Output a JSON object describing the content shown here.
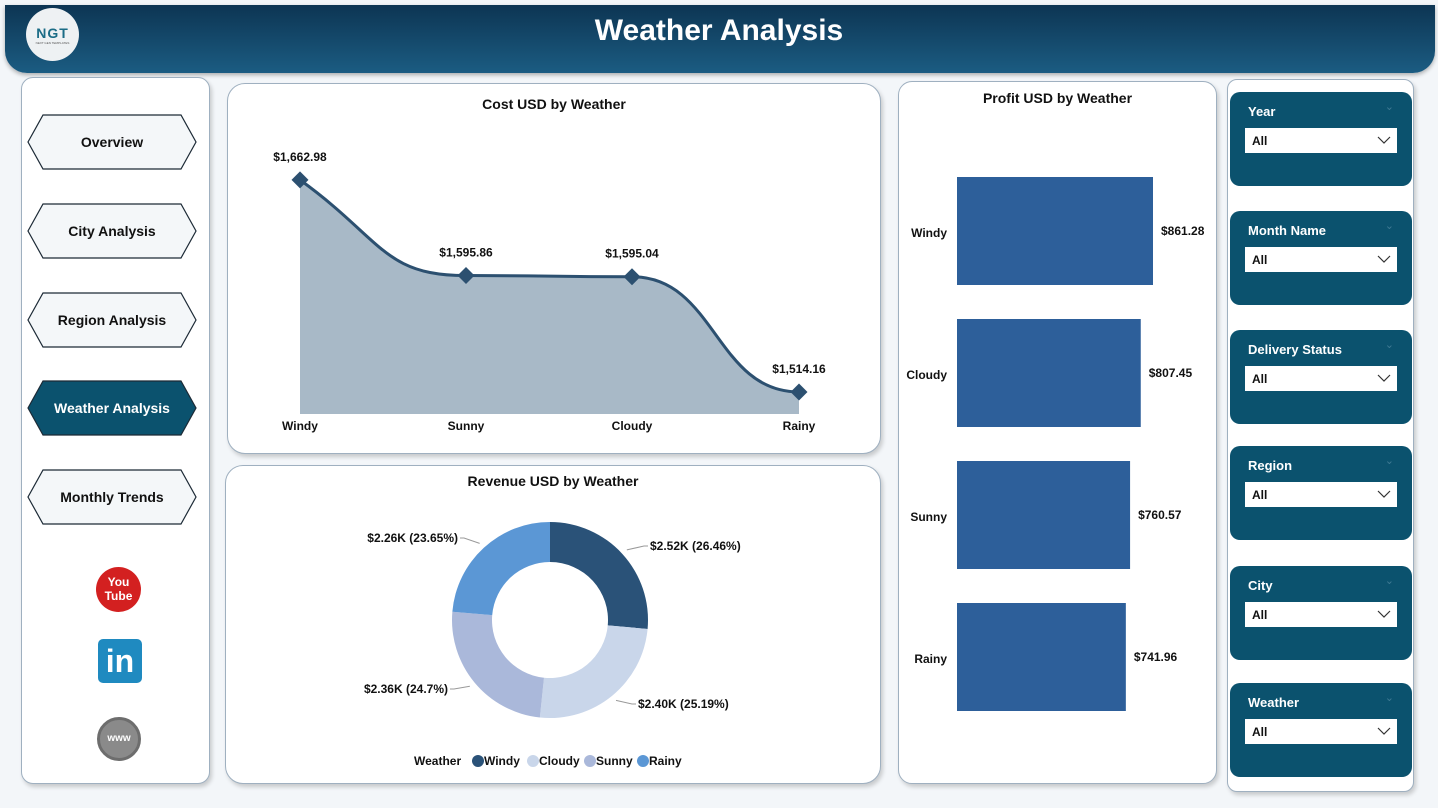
{
  "header": {
    "title": "Weather Analysis",
    "logo_text": "NGT",
    "logo_sub": "NEXT GEN TEMPLATES"
  },
  "nav": {
    "items": [
      {
        "label": "Overview",
        "active": false
      },
      {
        "label": "City Analysis",
        "active": false
      },
      {
        "label": "Region Analysis",
        "active": false
      },
      {
        "label": "Weather Analysis",
        "active": true
      },
      {
        "label": "Monthly Trends",
        "active": false
      }
    ],
    "social": [
      "youtube-icon",
      "linkedin-icon",
      "website-icon"
    ],
    "youtube_text": "You Tube",
    "linkedin_text": "in",
    "web_text": "www"
  },
  "colors": {
    "accent": "#0b526e",
    "area": "#a8b9c7",
    "line": "#2c5070",
    "bar": "#2d5f9a",
    "windy": "#2a5278",
    "cloudy": "#c9d6ea",
    "sunny": "#aab8da",
    "rainy": "#5b97d5"
  },
  "slicers": [
    {
      "label": "Year",
      "value": "All"
    },
    {
      "label": "Month Name",
      "value": "All"
    },
    {
      "label": "Delivery Status",
      "value": "All"
    },
    {
      "label": "Region",
      "value": "All"
    },
    {
      "label": "City",
      "value": "All"
    },
    {
      "label": "Weather",
      "value": "All"
    }
  ],
  "chart_data": [
    {
      "type": "area",
      "title": "Cost USD by Weather",
      "categories": [
        "Windy",
        "Sunny",
        "Cloudy",
        "Rainy"
      ],
      "values": [
        1662.98,
        1595.86,
        1595.04,
        1514.16
      ],
      "labels": [
        "$1,662.98",
        "$1,595.86",
        "$1,595.04",
        "$1,514.16"
      ],
      "grid": false
    },
    {
      "type": "bar",
      "orientation": "horizontal",
      "title": "Profit USD by Weather",
      "categories": [
        "Windy",
        "Cloudy",
        "Sunny",
        "Rainy"
      ],
      "values": [
        861.28,
        807.45,
        760.57,
        741.96
      ],
      "labels": [
        "$861.28",
        "$807.45",
        "$760.57",
        "$741.96"
      ],
      "grid": false
    },
    {
      "type": "pie",
      "donut": true,
      "title": "Revenue USD by Weather",
      "legend_title": "Weather",
      "legend_position": "bottom",
      "categories": [
        "Windy",
        "Cloudy",
        "Sunny",
        "Rainy"
      ],
      "percents": [
        26.46,
        25.19,
        24.7,
        23.65
      ],
      "labels": [
        "$2.52K (26.46%)",
        "$2.40K (25.19%)",
        "$2.36K (24.7%)",
        "$2.26K (23.65%)"
      ]
    }
  ]
}
